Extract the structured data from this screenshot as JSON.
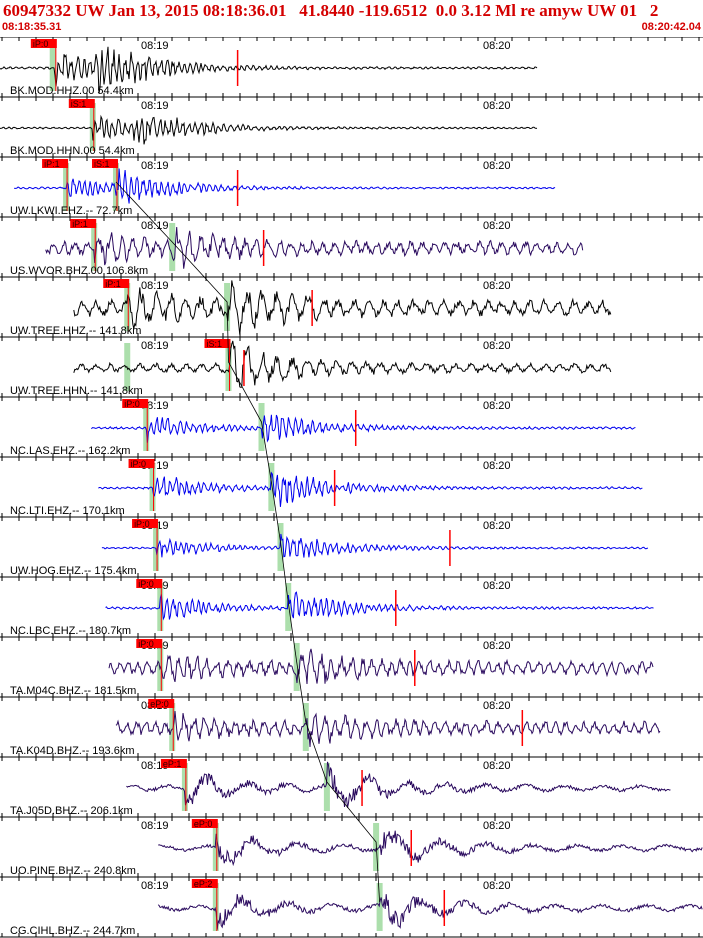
{
  "header": {
    "title": "60947332 UW Jan 13, 2015 08:18:36.01   41.8440 -119.6512  0.0 3.12 Ml re amyw UW 01   2",
    "time_start": "08:18:35.31",
    "time_end": "08:20:42.04"
  },
  "colors": {
    "header_text": "#d40000",
    "pick_box": "#ff0000",
    "green_band": "#9ed99e",
    "trace_black": "#000000",
    "trace_blue": "#0000ee",
    "trace_purple": "#2a0a5e",
    "moveout_curve": "#000000",
    "grid": "#000000"
  },
  "chart_data": {
    "type": "line",
    "x_axis": {
      "start": "08:18:35.31",
      "end": "08:20:42.04",
      "tick_labels": [
        "08:19",
        "08:20"
      ]
    },
    "moveout_curve": true,
    "traces": [
      {
        "label": "BK.MOD.HHZ.00 54.4km",
        "color": "black",
        "amp": 0.85,
        "noise": 0.05,
        "freq": 3.0,
        "start": 0.0,
        "end": 0.765,
        "picks": [
          {
            "text": "iP:0",
            "t": 0.078
          }
        ],
        "green": [
          0.075
        ],
        "red_lines": [
          0.338
        ]
      },
      {
        "label": "BK.MOD.HHN.00 54.4km",
        "color": "black",
        "amp": 0.6,
        "noise": 0.04,
        "freq": 3.0,
        "start": 0.0,
        "end": 0.765,
        "picks": [
          {
            "text": "iS:1",
            "t": 0.132
          }
        ],
        "green": [
          0.132
        ],
        "red_lines": []
      },
      {
        "label": "UW.LKWI.EHZ.-- 72.7km",
        "color": "blue",
        "amp": 0.55,
        "noise": 0.04,
        "freq": 3.0,
        "start": 0.02,
        "end": 0.79,
        "picks": [
          {
            "text": "iP:1",
            "t": 0.094
          },
          {
            "text": "iS:1",
            "t": 0.165
          }
        ],
        "green": [
          0.094,
          0.165
        ],
        "red_lines": [
          0.338
        ]
      },
      {
        "label": "US.WVOR.BHZ.00 106.8km",
        "color": "purple",
        "amp": 0.55,
        "noise": 0.3,
        "freq": 1.6,
        "start": 0.065,
        "end": 0.83,
        "picks": [
          {
            "text": "iP:1",
            "t": 0.134
          }
        ],
        "green": [
          0.134,
          0.245
        ],
        "red_lines": [
          0.375
        ]
      },
      {
        "label": "UW.TREE.HHZ.-- 141.8km",
        "color": "black",
        "amp": 0.8,
        "noise": 0.35,
        "freq": 1.2,
        "start": 0.105,
        "end": 0.87,
        "picks": [
          {
            "text": "iP:1",
            "t": 0.181
          }
        ],
        "green": [
          0.181,
          0.323
        ],
        "red_lines": [
          0.444
        ]
      },
      {
        "label": "UW.TREE.HHN.-- 141.8km",
        "color": "black",
        "amp": 0.55,
        "noise": 0.2,
        "freq": 1.2,
        "start": 0.105,
        "end": 0.87,
        "picks": [
          {
            "text": "iS:1",
            "t": 0.325
          }
        ],
        "green": [
          0.181,
          0.325
        ],
        "red_lines": [
          0.347
        ]
      },
      {
        "label": "NC.LAS.EHZ.-- 162.2km",
        "color": "blue",
        "amp": 0.6,
        "noise": 0.05,
        "freq": 3.0,
        "start": 0.13,
        "end": 0.905,
        "picks": [
          {
            "text": "iP:0",
            "t": 0.208
          }
        ],
        "green": [
          0.208,
          0.372
        ],
        "red_lines": [
          0.506
        ]
      },
      {
        "label": "NC.LTI.EHZ.-- 170.1km",
        "color": "blue",
        "amp": 0.7,
        "noise": 0.05,
        "freq": 3.0,
        "start": 0.14,
        "end": 0.915,
        "picks": [
          {
            "text": "iP:0",
            "t": 0.217
          }
        ],
        "green": [
          0.217,
          0.386
        ],
        "red_lines": [
          0.476
        ]
      },
      {
        "label": "UW.HOG.EHZ.-- 175.4km",
        "color": "blue",
        "amp": 0.55,
        "noise": 0.04,
        "freq": 3.0,
        "start": 0.145,
        "end": 0.922,
        "picks": [
          {
            "text": "iP:0",
            "t": 0.222
          }
        ],
        "green": [
          0.222,
          0.399
        ],
        "red_lines": [
          0.64
        ]
      },
      {
        "label": "NC.LBC.EHZ.-- 180.7km",
        "color": "blue",
        "amp": 0.6,
        "noise": 0.05,
        "freq": 3.0,
        "start": 0.15,
        "end": 0.93,
        "picks": [
          {
            "text": "iP:0",
            "t": 0.228
          }
        ],
        "green": [
          0.228,
          0.41
        ],
        "red_lines": [
          0.563
        ]
      },
      {
        "label": "TA.M04C.BHZ.-- 181.5km",
        "color": "purple",
        "amp": 0.55,
        "noise": 0.3,
        "freq": 1.8,
        "start": 0.155,
        "end": 0.93,
        "picks": [
          {
            "text": "iP:0",
            "t": 0.228
          }
        ],
        "green": [
          0.228,
          0.422
        ],
        "red_lines": [
          0.59
        ]
      },
      {
        "label": "TA.K04D.BHZ.-- 193.6km",
        "color": "purple",
        "amp": 0.45,
        "noise": 0.3,
        "freq": 1.8,
        "start": 0.165,
        "end": 0.94,
        "picks": [
          {
            "text": "eP:0",
            "t": 0.245
          }
        ],
        "green": [
          0.245,
          0.435
        ],
        "red_lines": [
          0.743
        ]
      },
      {
        "label": "TA.J05D.BHZ.-- 206.1km",
        "color": "purple",
        "amp": 0.8,
        "noise": 0.15,
        "freq": 0.45,
        "start": 0.18,
        "end": 0.955,
        "picks": [
          {
            "text": "eP:1",
            "t": 0.263
          }
        ],
        "green": [
          0.263,
          0.465
        ],
        "red_lines": [
          0.515
        ]
      },
      {
        "label": "UO.PINE.BHZ.-- 240.8km",
        "color": "purple",
        "amp": 0.8,
        "noise": 0.15,
        "freq": 0.4,
        "start": 0.225,
        "end": 1.0,
        "picks": [
          {
            "text": "eP:0",
            "t": 0.307
          }
        ],
        "green": [
          0.307,
          0.535
        ],
        "red_lines": [
          0.585
        ]
      },
      {
        "label": "CG.CIHL.BHZ.-- 244.7km",
        "color": "purple",
        "amp": 0.8,
        "noise": 0.15,
        "freq": 0.4,
        "start": 0.225,
        "end": 1.0,
        "picks": [
          {
            "text": "eP:2",
            "t": 0.307
          }
        ],
        "green": [
          0.307,
          0.54
        ],
        "red_lines": [
          0.632
        ]
      }
    ]
  }
}
